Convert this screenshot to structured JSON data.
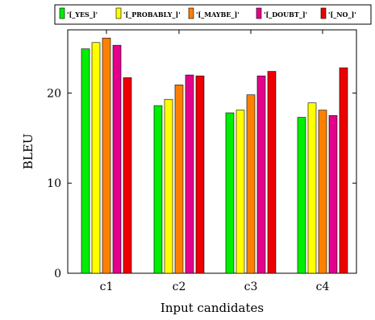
{
  "chart_data": {
    "type": "bar",
    "title": "",
    "xlabel": "Input candidates",
    "ylabel": "BLEU",
    "categories": [
      "c1",
      "c2",
      "c3",
      "c4"
    ],
    "ylim": [
      0,
      27
    ],
    "yticks": [
      "0",
      "10",
      "20"
    ],
    "legend_position": "top",
    "grid": false,
    "series": [
      {
        "name": "'[_YES_]'",
        "color": "#00ee00",
        "values": [
          24.9,
          18.6,
          17.8,
          17.3
        ]
      },
      {
        "name": "'[_PROBABLY_]'",
        "color": "#ffff00",
        "values": [
          25.6,
          19.3,
          18.1,
          18.9
        ]
      },
      {
        "name": "'[_MAYBE_]'",
        "color": "#ff8000",
        "values": [
          26.1,
          20.9,
          19.8,
          18.1
        ]
      },
      {
        "name": "'[_DOUBT_]'",
        "color": "#e4008c",
        "values": [
          25.3,
          22.0,
          21.9,
          17.5
        ]
      },
      {
        "name": "'[_NO_]'",
        "color": "#ee0000",
        "values": [
          21.7,
          21.9,
          22.4,
          22.8
        ]
      }
    ]
  }
}
